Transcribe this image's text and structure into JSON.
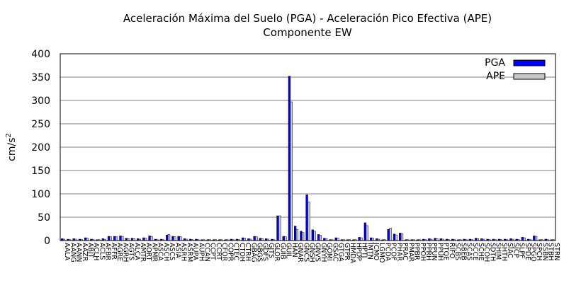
{
  "chart_data": {
    "type": "bar",
    "title": "Aceleración Máxima del Suelo (PGA) -  Aceleración Pico Efectiva (APE)",
    "subtitle": "Componente EW",
    "ylabel": "cm/s",
    "ylabel_sup": "2",
    "ylim": [
      0,
      400
    ],
    "yticks": [
      0,
      50,
      100,
      150,
      200,
      250,
      300,
      350,
      400
    ],
    "grid": "horizontal",
    "legend_position": "top-right",
    "categories": [
      "AALA",
      "AANG",
      "AANN",
      "AAZR",
      "ABJT",
      "ACLH",
      "ACLS",
      "AFBR",
      "AFFR",
      "AGRE",
      "AGRH",
      "AGTS",
      "ALCA",
      "AMTR",
      "AORT",
      "APMR",
      "ASCA",
      "ASCH",
      "ASCS",
      "ASIA",
      "ASRH",
      "ASRM",
      "AUPA",
      "AUPH",
      "CCAN",
      "CCPT",
      "CCRT",
      "CFOR",
      "COPR",
      "CTEC",
      "CTOH",
      "CTRH",
      "GBAG",
      "GBGS",
      "GDFS",
      "GJTS",
      "GLOR",
      "GUIB",
      "GUIL",
      "HAN",
      "GNAR",
      "GNCS",
      "GNSH",
      "GNVS",
      "GNYH",
      "GOMI",
      "GSAC",
      "GTGA",
      "GTPR",
      "HMDA",
      "HPDP",
      "HPTJ",
      "IMTN",
      "JCMO",
      "LGMO",
      "PCDA",
      "PCOF",
      "PHAR",
      "PRAC",
      "PMAR",
      "PPBR",
      "PPOH",
      "PPRH",
      "PPUN",
      "PPUH",
      "PTQE",
      "RIFO",
      "SCBS",
      "SBEB",
      "SCAS",
      "SCCE",
      "SCHE",
      "SCOH",
      "SDTH",
      "SHIM",
      "SHTH",
      "SIAC",
      "SJCP",
      "SLPF",
      "SPDE",
      "SPGO",
      "SPCH",
      "SSBN",
      "STBH",
      "STRN"
    ],
    "series": [
      {
        "name": "PGA",
        "color": "#0000ff",
        "values": [
          4,
          3,
          4,
          3,
          6,
          3,
          2,
          4,
          9,
          9,
          10,
          5,
          5,
          4,
          6,
          10,
          3,
          3,
          12,
          9,
          9,
          4,
          3,
          3,
          2,
          2,
          2,
          2,
          2,
          3,
          3,
          6,
          4,
          9,
          5,
          4,
          3,
          53,
          9,
          352,
          31,
          20,
          98,
          23,
          13,
          5,
          2,
          6,
          2,
          2,
          2,
          7,
          38,
          6,
          4,
          2,
          24,
          14,
          16,
          2,
          2,
          2,
          3,
          4,
          5,
          4,
          3,
          3,
          2,
          3,
          3,
          5,
          4,
          3,
          3,
          3,
          3,
          4,
          3,
          7,
          3,
          10,
          2,
          3,
          2
        ]
      },
      {
        "name": "APE",
        "color": "#c8c8c8",
        "values": [
          3,
          2,
          3,
          2,
          5,
          2,
          2,
          3,
          8,
          8,
          9,
          4,
          4,
          3,
          5,
          9,
          2,
          2,
          13,
          8,
          8,
          3,
          2,
          2,
          2,
          2,
          2,
          2,
          2,
          2,
          2,
          5,
          3,
          8,
          4,
          3,
          2,
          53,
          8,
          297,
          24,
          17,
          83,
          20,
          11,
          4,
          2,
          5,
          2,
          2,
          2,
          6,
          32,
          5,
          3,
          2,
          27,
          12,
          15,
          2,
          2,
          2,
          2,
          3,
          4,
          3,
          2,
          2,
          2,
          2,
          2,
          4,
          3,
          2,
          2,
          2,
          2,
          3,
          2,
          6,
          2,
          9,
          2,
          2,
          2
        ]
      }
    ]
  }
}
